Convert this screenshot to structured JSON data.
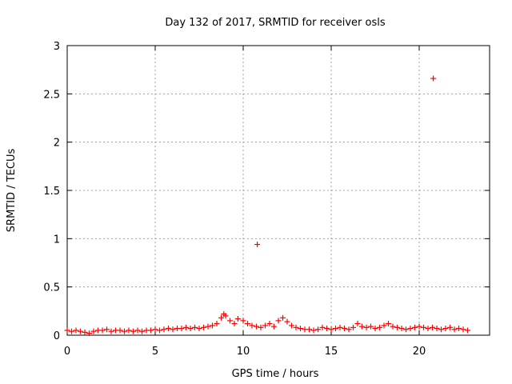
{
  "chart_data": {
    "type": "scatter",
    "title": "Day 132 of 2017, SRMTID for receiver osls",
    "xlabel": "GPS time / hours",
    "ylabel": "SRMTID / TECUs",
    "xlim": [
      0,
      24
    ],
    "ylim": [
      0,
      3
    ],
    "xticks": [
      "0",
      "5",
      "10",
      "15",
      "20"
    ],
    "yticks": [
      "0",
      "0.5",
      "1",
      "1.5",
      "2",
      "2.5",
      "3"
    ],
    "grid": true,
    "legend": "none",
    "marker": "+",
    "color": "#ff0000",
    "series": [
      {
        "x": [
          0.0,
          0.25,
          0.5,
          0.75,
          1.0,
          1.25,
          1.5,
          1.75,
          2.0,
          2.25,
          2.5,
          2.75,
          3.0,
          3.25,
          3.5,
          3.75,
          4.0,
          4.25,
          4.5,
          4.75,
          5.0,
          5.25,
          5.5,
          5.75,
          6.0,
          6.25,
          6.5,
          6.75,
          7.0,
          7.25,
          7.5,
          7.75,
          8.0,
          8.25,
          8.5,
          8.75,
          8.9,
          9.0,
          9.25,
          9.5,
          9.7,
          10.0,
          10.25,
          10.5,
          10.75,
          10.8,
          11.0,
          11.25,
          11.5,
          11.75,
          12.0,
          12.25,
          12.5,
          12.75,
          13.0,
          13.25,
          13.5,
          13.75,
          14.0,
          14.25,
          14.5,
          14.75,
          15.0,
          15.25,
          15.5,
          15.75,
          16.0,
          16.25,
          16.5,
          16.75,
          17.0,
          17.25,
          17.5,
          17.75,
          18.0,
          18.25,
          18.5,
          18.75,
          19.0,
          19.25,
          19.5,
          19.75,
          20.0,
          20.25,
          20.5,
          20.75,
          20.8,
          21.0,
          21.25,
          21.5,
          21.75,
          22.0,
          22.25,
          22.5,
          22.75
        ],
        "y": [
          0.05,
          0.04,
          0.05,
          0.04,
          0.03,
          0.02,
          0.04,
          0.05,
          0.05,
          0.06,
          0.04,
          0.05,
          0.05,
          0.04,
          0.05,
          0.04,
          0.05,
          0.04,
          0.05,
          0.05,
          0.06,
          0.05,
          0.06,
          0.07,
          0.06,
          0.07,
          0.07,
          0.08,
          0.07,
          0.08,
          0.07,
          0.08,
          0.09,
          0.1,
          0.12,
          0.18,
          0.22,
          0.2,
          0.15,
          0.12,
          0.17,
          0.15,
          0.12,
          0.1,
          0.09,
          0.94,
          0.08,
          0.1,
          0.12,
          0.09,
          0.15,
          0.18,
          0.14,
          0.1,
          0.08,
          0.07,
          0.06,
          0.06,
          0.05,
          0.06,
          0.08,
          0.07,
          0.06,
          0.07,
          0.08,
          0.07,
          0.06,
          0.08,
          0.12,
          0.09,
          0.08,
          0.09,
          0.07,
          0.08,
          0.1,
          0.12,
          0.09,
          0.08,
          0.07,
          0.06,
          0.07,
          0.08,
          0.09,
          0.08,
          0.07,
          0.08,
          2.66,
          0.07,
          0.06,
          0.07,
          0.08,
          0.06,
          0.07,
          0.06,
          0.05
        ]
      }
    ]
  }
}
